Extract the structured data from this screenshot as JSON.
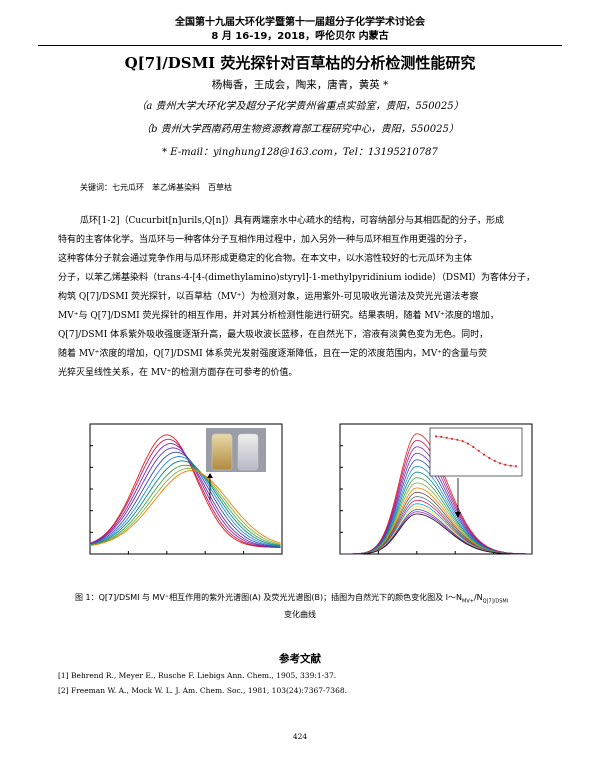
{
  "header": {
    "line1": "全国第十九届大环化学暨第十一届超分子化学学术讨论会",
    "line2": "8 月 16-19，2018，呼伦贝尔 内蒙古"
  },
  "title": "Q[7]/DSMI 荧光探针对百草枯的分析检测性能研究",
  "authors": "杨梅香，王成会，陶来，唐青，黄英 *",
  "affil_a": "（a 贵州大学大环化学及超分子化学贵州省重点实验室，贵阳，550025）",
  "affil_b": "（b 贵州大学西南药用生物资源教育部工程研究中心，贵阳，550025）",
  "contact": "* E-mail：yinghung128@163.com，Tel：13195210787",
  "keywords": "关键词：七元瓜环　苯乙烯基染料　百草枯",
  "abstract": [
    "瓜环[1-2]（Cucurbit[n]urils,Q[n]）具有两端亲水中心疏水的结构，可容纳部分与其相匹配的分子，形成",
    "特有的主客体化学。当瓜环与一种客体分子互相作用过程中，加入另外一种与瓜环相互作用更强的分子，",
    "这种客体分子就会通过竞争作用与瓜环形成更稳定的化合物。在本文中，以水溶性较好的七元瓜环为主体",
    "分子，以苯乙烯基染料（trans-4-[4-(dimethylamino)styryl]-1-methylpyridinium iodide）（DSMI）为客体分子，",
    "构筑 Q[7]/DSMI 荧光探针，以百草枯（MV⁺）为检测对象，运用紫外-可见吸收光谱法及荧光光谱法考察",
    "MV⁺与 Q[7]/DSMI 荧光探针的相互作用，并对其分析检测性能进行研究。结果表明，随着 MV⁺浓度的增加，",
    "Q[7]/DSMI 体系紫外吸收强度逐渐升高，最大吸收波长蓝移，在自然光下，溶液有淡黄色变为无色。同时，",
    "随着 MV⁺浓度的增加，Q[7]/DSMI 体系荧光发射强度逐渐降低，且在一定的浓度范围内，MV⁺的含量与荧",
    "光猝灭呈线性关系，在 MV⁺的检测方面存在可参考的价值。"
  ],
  "chart_data": [
    {
      "type": "line",
      "id": "A",
      "xlabel": "Wavelength(nm)",
      "ylabel": "Absorbance(a.u.)",
      "xlim": [
        350,
        600
      ],
      "ylim": [
        0.0,
        0.6
      ],
      "xticks": [
        350,
        400,
        450,
        500,
        550,
        600
      ],
      "yticks": [
        0.0,
        0.1,
        0.2,
        0.3,
        0.4,
        0.5,
        0.6
      ],
      "annotation": "MV⁺",
      "series_peaks": [
        {
          "peak_x": 450,
          "peak_y": 0.55
        },
        {
          "peak_x": 452,
          "peak_y": 0.53
        },
        {
          "peak_x": 455,
          "peak_y": 0.51
        },
        {
          "peak_x": 458,
          "peak_y": 0.49
        },
        {
          "peak_x": 462,
          "peak_y": 0.47
        },
        {
          "peak_x": 466,
          "peak_y": 0.45
        },
        {
          "peak_x": 470,
          "peak_y": 0.43
        },
        {
          "peak_x": 474,
          "peak_y": 0.41
        },
        {
          "peak_x": 478,
          "peak_y": 0.395
        },
        {
          "peak_x": 482,
          "peak_y": 0.385
        }
      ],
      "inset_labels": [
        "Q[7]+DSMI",
        "Q[7]+DSMI+MV²⁺"
      ]
    },
    {
      "type": "line",
      "id": "B",
      "panel_label": "(B)",
      "xlabel": "Wavelength(nm)",
      "ylabel": "Fluorescence(a.u.)",
      "xlim": [
        500,
        750
      ],
      "ylim": [
        0,
        600
      ],
      "xticks": [
        500,
        550,
        600,
        650,
        700,
        750
      ],
      "yticks": [
        0,
        100,
        200,
        300,
        400,
        500,
        600
      ],
      "annotation": "MV⁺",
      "peaks": [
        555,
        525,
        495,
        465,
        435,
        405,
        378,
        352,
        328,
        305,
        285,
        265,
        248,
        232,
        218,
        205,
        195,
        185
      ],
      "peak_x": 600,
      "inset": {
        "points": [
          1.0,
          0.99,
          0.97,
          0.95,
          0.93,
          0.9,
          0.85,
          0.78,
          0.7,
          0.62,
          0.55,
          0.49,
          0.44,
          0.41,
          0.39,
          0.38
        ]
      }
    }
  ],
  "fig_caption_line1": "图 1：Q[7]/DSMI 与 MV⁺相互作用的紫外光谱图(A) 及荧光光谱图(B)；插图为自然光下的颜色变化图及 I～N",
  "fig_caption_sub": "MV+",
  "fig_caption_mid": "/N",
  "fig_caption_sub2": "Q[7]/DSMI",
  "fig_caption_line2": "变化曲线",
  "refs_title": "参考文献",
  "refs": [
    "[1] Behrend R., Meyer E., Rusche F. Liebigs Ann. Chem., 1905, 339:1-37.",
    "[2] Freeman W. A., Mock W. L. J. Am. Chem. Soc., 1981, 103(24):7367-7368."
  ],
  "page_number": "424"
}
